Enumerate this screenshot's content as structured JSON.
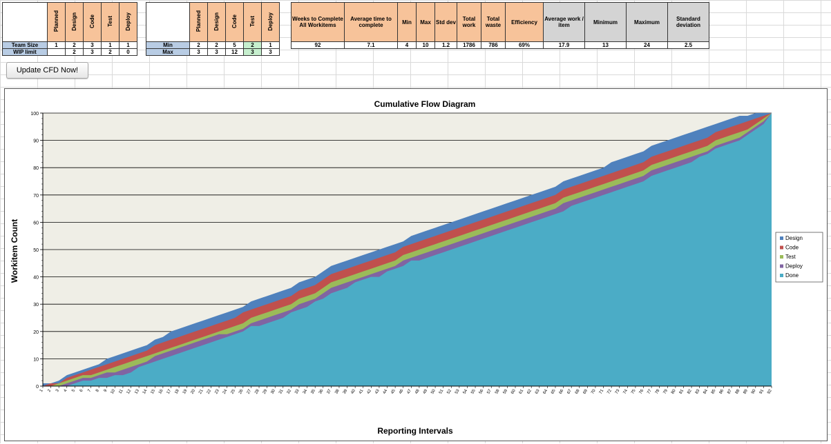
{
  "table1": {
    "headers": [
      "Planned",
      "Design",
      "Code",
      "Test",
      "Deploy"
    ],
    "rows": [
      {
        "label": "Team Size",
        "values": [
          "1",
          "2",
          "3",
          "1",
          "1"
        ]
      },
      {
        "label": "WIP limit",
        "values": [
          "",
          "2",
          "3",
          "2",
          "0"
        ]
      }
    ]
  },
  "table2": {
    "headers": [
      "Planned",
      "Design",
      "Code",
      "Test",
      "Deploy"
    ],
    "rows": [
      {
        "label": "Min",
        "values": [
          "2",
          "2",
          "5",
          "2",
          "1"
        ]
      },
      {
        "label": "Max",
        "values": [
          "3",
          "3",
          "12",
          "3",
          "3"
        ]
      }
    ]
  },
  "stats": {
    "headers": [
      "Weeks to Complete All Workitems",
      "Average time to complete",
      "Min",
      "Max",
      "Std dev",
      "Total work",
      "Total waste",
      "Efficiency",
      "Average work / item",
      "Minimum",
      "Maximum",
      "Standard deviation"
    ],
    "values": [
      "92",
      "7.1",
      "4",
      "10",
      "1.2",
      "1786",
      "786",
      "69%",
      "17.9",
      "13",
      "24",
      "2.5"
    ]
  },
  "button": {
    "label": "Update CFD Now!"
  },
  "chart_data": {
    "type": "area",
    "title": "Cumulative Flow Diagram",
    "xlabel": "Reporting Intervals",
    "ylabel": "Workitem Count",
    "ylim": [
      0,
      100
    ],
    "yticks": [
      0,
      10,
      20,
      30,
      40,
      50,
      60,
      70,
      80,
      90,
      100
    ],
    "x_range": [
      1,
      92
    ],
    "legend_position": "right",
    "colors": {
      "Design": "#4f81bd",
      "Code": "#c0504d",
      "Test": "#9bbb59",
      "Deploy": "#8064a2",
      "Done": "#4bacc6"
    },
    "series": [
      {
        "name": "Design",
        "values": [
          1,
          1,
          2,
          4,
          5,
          6,
          7,
          8,
          10,
          11,
          12,
          13,
          14,
          15,
          17,
          18,
          20,
          21,
          22,
          23,
          24,
          25,
          26,
          27,
          28,
          29,
          31,
          32,
          33,
          34,
          35,
          36,
          38,
          39,
          40,
          42,
          44,
          45,
          46,
          47,
          48,
          49,
          50,
          51,
          52,
          53,
          55,
          56,
          57,
          58,
          59,
          60,
          61,
          62,
          63,
          64,
          65,
          66,
          67,
          68,
          69,
          70,
          71,
          72,
          73,
          75,
          76,
          77,
          78,
          79,
          80,
          82,
          83,
          84,
          85,
          86,
          88,
          89,
          90,
          91,
          92,
          93,
          94,
          95,
          96,
          97,
          98,
          99,
          99,
          100,
          100,
          100
        ]
      },
      {
        "name": "Code",
        "values": [
          0,
          1,
          1,
          3,
          4,
          5,
          6,
          7,
          8,
          9,
          10,
          11,
          12,
          13,
          15,
          16,
          17,
          18,
          19,
          20,
          21,
          22,
          23,
          24,
          25,
          27,
          28,
          29,
          30,
          31,
          32,
          33,
          35,
          36,
          37,
          39,
          41,
          42,
          43,
          44,
          45,
          46,
          47,
          48,
          49,
          51,
          52,
          53,
          54,
          55,
          56,
          57,
          58,
          59,
          60,
          61,
          62,
          63,
          64,
          65,
          66,
          67,
          68,
          69,
          70,
          72,
          73,
          74,
          75,
          76,
          77,
          78,
          79,
          80,
          81,
          82,
          84,
          85,
          86,
          87,
          88,
          89,
          90,
          91,
          93,
          94,
          95,
          96,
          97,
          98,
          99,
          100
        ]
      },
      {
        "name": "Test",
        "values": [
          0,
          0,
          1,
          2,
          3,
          4,
          4,
          5,
          6,
          7,
          8,
          9,
          10,
          11,
          12,
          13,
          14,
          15,
          16,
          17,
          18,
          19,
          20,
          21,
          22,
          23,
          25,
          26,
          27,
          28,
          29,
          30,
          32,
          33,
          34,
          36,
          38,
          39,
          40,
          41,
          42,
          43,
          44,
          45,
          46,
          48,
          49,
          50,
          51,
          52,
          53,
          54,
          55,
          56,
          57,
          58,
          59,
          60,
          61,
          62,
          63,
          64,
          65,
          66,
          67,
          69,
          70,
          71,
          72,
          73,
          74,
          75,
          76,
          77,
          78,
          79,
          81,
          82,
          83,
          84,
          85,
          86,
          87,
          88,
          90,
          91,
          92,
          93,
          94,
          96,
          98,
          100
        ]
      },
      {
        "name": "Deploy",
        "values": [
          0,
          0,
          0,
          1,
          2,
          3,
          3,
          4,
          5,
          5,
          6,
          7,
          8,
          9,
          11,
          12,
          13,
          14,
          15,
          16,
          17,
          18,
          19,
          19,
          20,
          21,
          23,
          24,
          25,
          26,
          27,
          28,
          30,
          31,
          32,
          34,
          36,
          37,
          38,
          39,
          40,
          41,
          42,
          43,
          44,
          46,
          47,
          48,
          49,
          50,
          51,
          52,
          53,
          54,
          55,
          56,
          57,
          58,
          59,
          60,
          61,
          62,
          63,
          64,
          65,
          67,
          68,
          69,
          70,
          71,
          72,
          73,
          74,
          75,
          76,
          77,
          79,
          80,
          81,
          82,
          83,
          84,
          85,
          86,
          88,
          89,
          90,
          91,
          93,
          95,
          97,
          100
        ]
      },
      {
        "name": "Done",
        "values": [
          0,
          0,
          0,
          0,
          1,
          2,
          2,
          3,
          3,
          4,
          4,
          5,
          7,
          8,
          9,
          10,
          11,
          12,
          13,
          14,
          15,
          16,
          17,
          18,
          19,
          20,
          22,
          22,
          23,
          24,
          25,
          27,
          28,
          29,
          31,
          32,
          34,
          35,
          36,
          38,
          39,
          40,
          40,
          42,
          43,
          44,
          46,
          46,
          47,
          48,
          49,
          50,
          51,
          52,
          53,
          54,
          55,
          56,
          57,
          58,
          59,
          60,
          61,
          62,
          63,
          64,
          66,
          67,
          68,
          69,
          70,
          71,
          72,
          73,
          74,
          75,
          77,
          78,
          79,
          80,
          81,
          82,
          84,
          85,
          87,
          88,
          89,
          90,
          92,
          94,
          96,
          100
        ]
      }
    ]
  }
}
